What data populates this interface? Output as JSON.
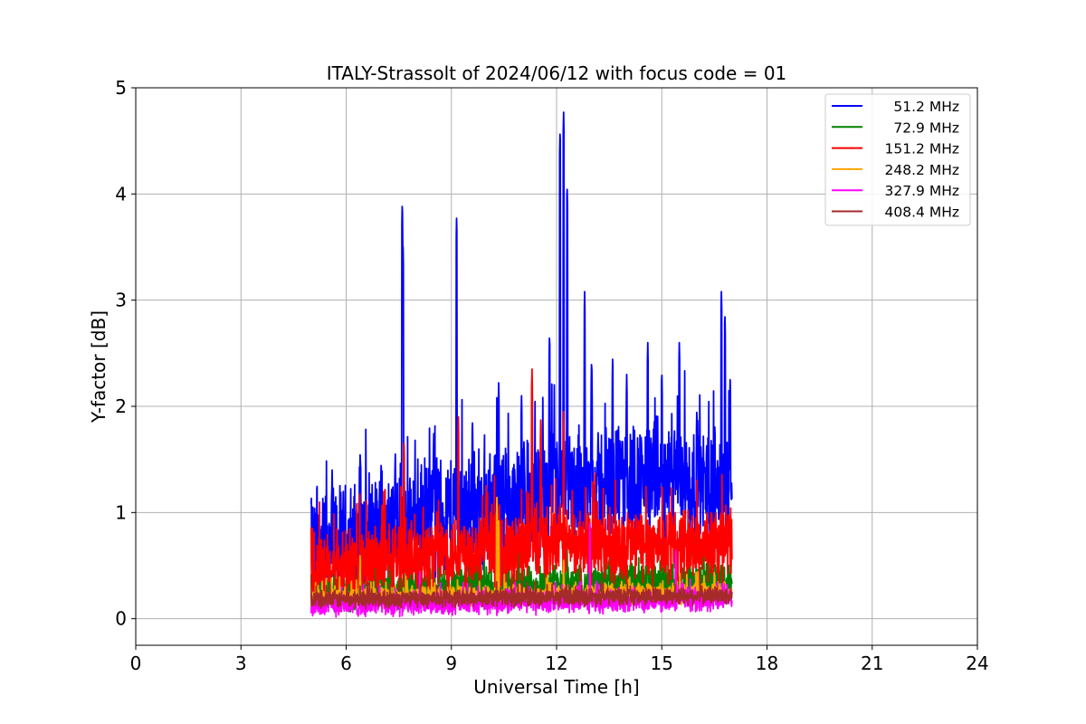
{
  "chart_data": {
    "type": "line",
    "title": "ITALY-Strassolt of 2024/06/12 with focus code = 01",
    "xlabel": "Universal Time [h]",
    "ylabel": "Y-factor [dB]",
    "xlim": [
      0,
      24
    ],
    "ylim": [
      -0.25,
      5
    ],
    "xticks": [
      0,
      3,
      6,
      9,
      12,
      15,
      18,
      21,
      24
    ],
    "yticks": [
      0,
      1,
      2,
      3,
      4,
      5
    ],
    "grid": true,
    "legend_position": "top-right",
    "x_range_of_data": [
      5,
      17
    ],
    "series": [
      {
        "name": "51.2 MHz",
        "color": "#0000ff",
        "baseline": [
          [
            5,
            0.6
          ],
          [
            6,
            0.7
          ],
          [
            7,
            0.8
          ],
          [
            8,
            0.9
          ],
          [
            9,
            1.0
          ],
          [
            10,
            1.05
          ],
          [
            11,
            1.1
          ],
          [
            12,
            1.2
          ],
          [
            13,
            1.25
          ],
          [
            14,
            1.3
          ],
          [
            15,
            1.3
          ],
          [
            16,
            1.25
          ],
          [
            17,
            1.25
          ]
        ],
        "noise": 0.55,
        "peaks": [
          [
            5.0,
            1.08
          ],
          [
            5.6,
            1.4
          ],
          [
            6.4,
            1.6
          ],
          [
            7.0,
            1.5
          ],
          [
            7.4,
            1.55
          ],
          [
            7.6,
            3.94
          ],
          [
            7.62,
            3.56
          ],
          [
            8.5,
            1.8
          ],
          [
            9.15,
            3.8
          ],
          [
            9.6,
            1.9
          ],
          [
            10.35,
            2.25
          ],
          [
            11.0,
            2.1
          ],
          [
            11.3,
            2.25
          ],
          [
            11.8,
            2.7
          ],
          [
            12.1,
            4.62
          ],
          [
            12.2,
            4.77
          ],
          [
            12.3,
            4.1
          ],
          [
            12.8,
            3.08
          ],
          [
            13.0,
            2.45
          ],
          [
            13.6,
            2.5
          ],
          [
            14.0,
            2.3
          ],
          [
            14.6,
            2.6
          ],
          [
            15.0,
            2.35
          ],
          [
            15.5,
            2.6
          ],
          [
            16.0,
            2.0
          ],
          [
            16.7,
            3.08
          ],
          [
            16.8,
            2.9
          ],
          [
            16.95,
            2.28
          ]
        ]
      },
      {
        "name": "72.9 MHz",
        "color": "#008000",
        "baseline": [
          [
            5,
            0.25
          ],
          [
            8,
            0.28
          ],
          [
            10,
            0.3
          ],
          [
            12,
            0.33
          ],
          [
            15,
            0.35
          ],
          [
            17,
            0.35
          ]
        ],
        "noise": 0.18,
        "peaks": []
      },
      {
        "name": "151.2 MHz",
        "color": "#ff0000",
        "baseline": [
          [
            5,
            0.4
          ],
          [
            6,
            0.5
          ],
          [
            7,
            0.55
          ],
          [
            8,
            0.6
          ],
          [
            9,
            0.65
          ],
          [
            10,
            0.65
          ],
          [
            11,
            0.65
          ],
          [
            12,
            0.7
          ],
          [
            13,
            0.7
          ],
          [
            14,
            0.7
          ],
          [
            15,
            0.7
          ],
          [
            16,
            0.7
          ],
          [
            17,
            0.7
          ]
        ],
        "noise": 0.35,
        "peaks": [
          [
            7.65,
            1.68
          ],
          [
            9.2,
            1.9
          ],
          [
            11.3,
            2.35
          ],
          [
            11.55,
            1.9
          ],
          [
            12.2,
            1.95
          ]
        ]
      },
      {
        "name": "248.2 MHz",
        "color": "#ffa500",
        "baseline": [
          [
            5,
            0.2
          ],
          [
            17,
            0.25
          ]
        ],
        "noise": 0.1,
        "peaks": [
          [
            6.4,
            0.65
          ],
          [
            10.3,
            1.2
          ],
          [
            10.35,
            0.95
          ],
          [
            12.2,
            0.55
          ]
        ]
      },
      {
        "name": "327.9 MHz",
        "color": "#ff00ff",
        "baseline": [
          [
            5,
            0.12
          ],
          [
            17,
            0.18
          ]
        ],
        "noise": 0.1,
        "peaks": [
          [
            8.1,
            0.5
          ],
          [
            12.95,
            0.98
          ],
          [
            15.4,
            0.7
          ]
        ]
      },
      {
        "name": "408.4 MHz",
        "color": "#a52a2a",
        "baseline": [
          [
            5,
            0.18
          ],
          [
            17,
            0.22
          ]
        ],
        "noise": 0.08,
        "peaks": []
      }
    ]
  }
}
